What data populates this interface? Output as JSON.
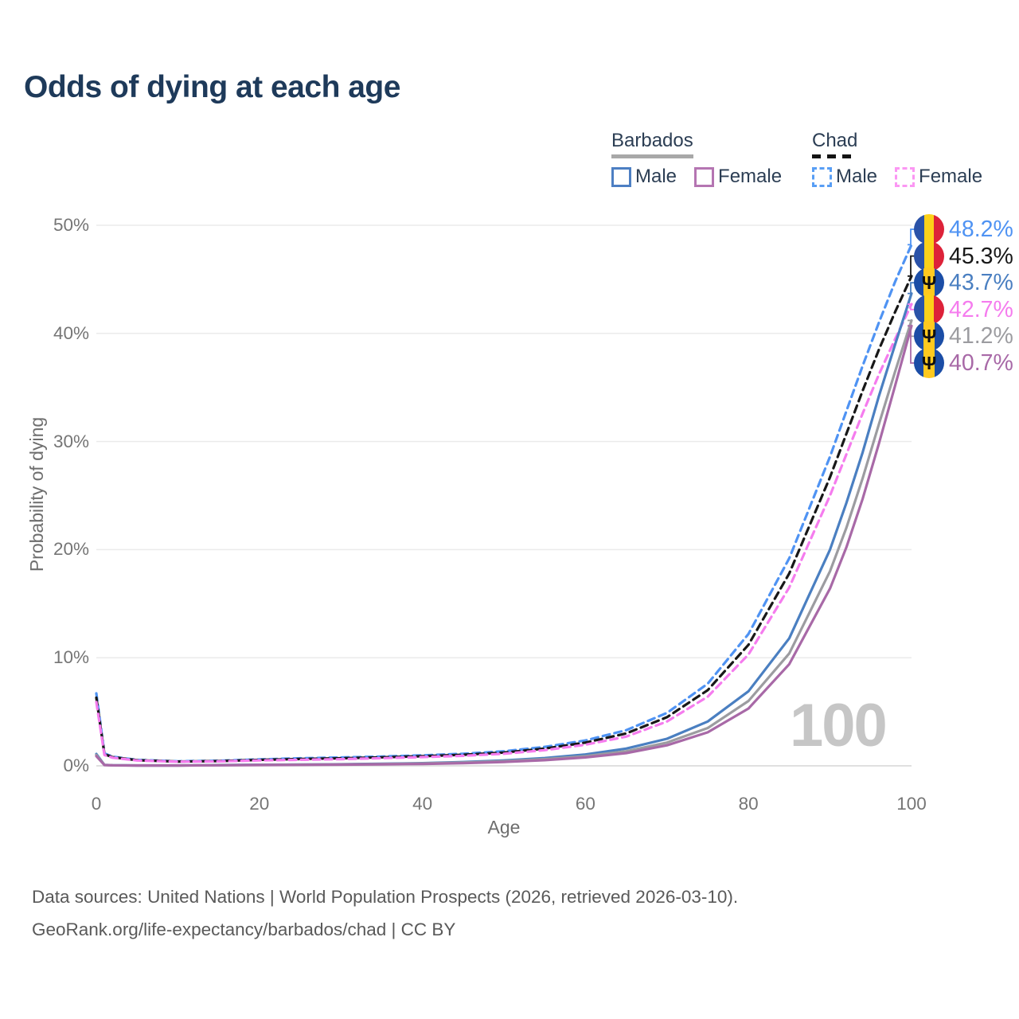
{
  "title": "Odds of dying at each age",
  "watermark": "100",
  "icons": {
    "barbados_trident": "Ψ"
  },
  "colors": {
    "title": "#1e3a5a",
    "grid": "#ebebeb",
    "baseline": "#d6d6d6",
    "tick_text": "#757575",
    "chad_flag": [
      "#2a52a8",
      "#fcd119",
      "#dd2239"
    ],
    "barbados_flag": [
      "#1b4da6",
      "#ffc91f"
    ]
  },
  "legend": {
    "groups": [
      {
        "country": "Barbados",
        "line_style": "solid",
        "underline_color": "#a8a8a8",
        "items": [
          {
            "label": "Male",
            "swatch_color": "#4d7fc3",
            "dashed": false
          },
          {
            "label": "Female",
            "swatch_color": "#b575b2",
            "dashed": false
          }
        ]
      },
      {
        "country": "Chad",
        "line_style": "dashed",
        "underline_color": "#141414",
        "items": [
          {
            "label": "Male",
            "swatch_color": "#589ef5",
            "dashed": true
          },
          {
            "label": "Female",
            "swatch_color": "#fb97f3",
            "dashed": true
          }
        ]
      }
    ]
  },
  "chart_data": {
    "type": "line",
    "title": "Odds of dying at each age",
    "xlabel": "Age",
    "ylabel": "Probability of dying",
    "xlim": [
      0,
      100
    ],
    "ylim_percent": [
      0,
      50
    ],
    "grid": "horizontal",
    "legend_position": "top-right",
    "x_ticks": [
      0,
      20,
      40,
      60,
      80,
      100
    ],
    "y_ticks_percent": [
      0,
      10,
      20,
      30,
      40,
      50
    ],
    "y_tick_labels": [
      "0%",
      "10%",
      "20%",
      "30%",
      "40%",
      "50%"
    ],
    "x_tick_labels": [
      "0",
      "20",
      "40",
      "60",
      "80",
      "100"
    ],
    "ages": [
      0,
      1,
      2,
      5,
      10,
      15,
      20,
      25,
      30,
      35,
      40,
      45,
      50,
      55,
      60,
      65,
      70,
      75,
      80,
      85,
      90,
      92,
      94,
      96,
      98,
      100
    ],
    "series": [
      {
        "id": "chad-male",
        "country": "Chad",
        "sex": "Male",
        "color": "#4f93f3",
        "dashed": true,
        "flag": "chad",
        "end_label": "48.2%",
        "values": [
          6.7,
          1.15,
          0.85,
          0.55,
          0.42,
          0.47,
          0.6,
          0.7,
          0.77,
          0.86,
          0.97,
          1.12,
          1.35,
          1.75,
          2.35,
          3.3,
          4.9,
          7.6,
          12.2,
          19.2,
          28.6,
          32.8,
          37.0,
          41.0,
          44.8,
          48.2
        ]
      },
      {
        "id": "chad-both",
        "country": "Chad",
        "sex": "Both sexes",
        "color": "#181818",
        "dashed": true,
        "flag": "chad",
        "end_label": "45.3%",
        "values": [
          6.3,
          1.08,
          0.8,
          0.52,
          0.4,
          0.44,
          0.55,
          0.63,
          0.7,
          0.79,
          0.89,
          1.02,
          1.23,
          1.6,
          2.15,
          3.0,
          4.5,
          7.0,
          11.2,
          17.8,
          26.7,
          30.7,
          34.7,
          38.5,
          42.0,
          45.3
        ]
      },
      {
        "id": "chad-female",
        "country": "Chad",
        "sex": "Female",
        "color": "#f57cee",
        "dashed": true,
        "flag": "chad",
        "end_label": "42.7%",
        "values": [
          5.9,
          1.0,
          0.75,
          0.49,
          0.38,
          0.41,
          0.5,
          0.56,
          0.62,
          0.71,
          0.81,
          0.93,
          1.12,
          1.45,
          1.95,
          2.7,
          4.1,
          6.4,
          10.3,
          16.5,
          25.0,
          28.8,
          32.6,
          36.2,
          39.5,
          42.7
        ]
      },
      {
        "id": "barbados-male",
        "country": "Barbados",
        "sex": "Male",
        "color": "#4a7fc1",
        "dashed": false,
        "flag": "barbados",
        "end_label": "43.7%",
        "values": [
          1.1,
          0.09,
          0.06,
          0.04,
          0.04,
          0.07,
          0.1,
          0.12,
          0.15,
          0.19,
          0.25,
          0.35,
          0.5,
          0.72,
          1.05,
          1.6,
          2.5,
          4.1,
          6.9,
          11.8,
          20.0,
          24.3,
          29.0,
          34.2,
          39.0,
          43.7
        ]
      },
      {
        "id": "barbados-both",
        "country": "Barbados",
        "sex": "Both sexes",
        "color": "#9c9ca0",
        "dashed": false,
        "flag": "barbados",
        "end_label": "41.2%",
        "values": [
          1.0,
          0.08,
          0.05,
          0.035,
          0.035,
          0.06,
          0.09,
          0.11,
          0.13,
          0.17,
          0.22,
          0.3,
          0.43,
          0.62,
          0.9,
          1.35,
          2.15,
          3.5,
          6.0,
          10.4,
          18.0,
          22.0,
          26.6,
          31.6,
          36.5,
          41.2
        ]
      },
      {
        "id": "barbados-female",
        "country": "Barbados",
        "sex": "Female",
        "color": "#a869a7",
        "dashed": false,
        "flag": "barbados",
        "end_label": "40.7%",
        "values": [
          0.9,
          0.07,
          0.045,
          0.03,
          0.03,
          0.05,
          0.07,
          0.09,
          0.11,
          0.14,
          0.18,
          0.25,
          0.36,
          0.52,
          0.78,
          1.18,
          1.9,
          3.1,
          5.3,
          9.4,
          16.4,
          20.2,
          24.7,
          29.8,
          35.2,
          40.7
        ]
      }
    ]
  },
  "footer": {
    "line1": "Data sources: United Nations | World Population Prospects (2026, retrieved 2026-03-10).",
    "line2": "GeoRank.org/life-expectancy/barbados/chad | CC BY"
  }
}
